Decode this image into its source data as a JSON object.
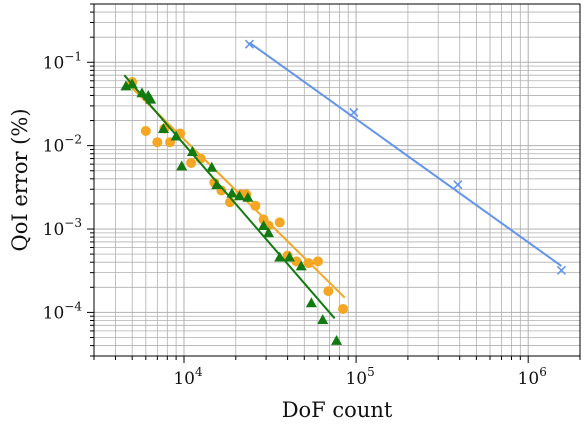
{
  "chart_data": {
    "type": "scatter",
    "xlabel": "DoF count",
    "ylabel": "QoI error (%)",
    "xscale": "log",
    "yscale": "log",
    "xlim": [
      3000,
      2000000
    ],
    "ylim": [
      3e-05,
      0.5
    ],
    "grid": true,
    "x_ticks": [
      {
        "value": 10000,
        "base": "10",
        "exp": "4"
      },
      {
        "value": 100000,
        "base": "10",
        "exp": "5"
      },
      {
        "value": 1000000,
        "base": "10",
        "exp": "6"
      }
    ],
    "y_ticks": [
      {
        "value": 0.1,
        "base": "10",
        "exp": "−1"
      },
      {
        "value": 0.01,
        "base": "10",
        "exp": "−2"
      },
      {
        "value": 0.001,
        "base": "10",
        "exp": "−3"
      },
      {
        "value": 0.0001,
        "base": "10",
        "exp": "−4"
      }
    ],
    "series": [
      {
        "marker": "x",
        "color": "#6495ED",
        "points": [
          [
            24000,
            0.165
          ],
          [
            97000,
            0.025
          ],
          [
            390000,
            0.0034
          ],
          [
            1560000,
            0.00032
          ]
        ],
        "fit": [
          [
            24000,
            0.172
          ],
          [
            1560000,
            0.00036
          ]
        ]
      },
      {
        "marker": "circle",
        "color": "#F5A623",
        "points": [
          [
            5000,
            0.058
          ],
          [
            6000,
            0.015
          ],
          [
            7000,
            0.011
          ],
          [
            7700,
            0.016
          ],
          [
            8300,
            0.011
          ],
          [
            9500,
            0.014
          ],
          [
            11000,
            0.0062
          ],
          [
            12500,
            0.007
          ],
          [
            15000,
            0.0036
          ],
          [
            16500,
            0.0029
          ],
          [
            18500,
            0.0021
          ],
          [
            21500,
            0.0026
          ],
          [
            23000,
            0.0026
          ],
          [
            26000,
            0.0019
          ],
          [
            29000,
            0.0013
          ],
          [
            31000,
            0.0011
          ],
          [
            36000,
            0.0012
          ],
          [
            40000,
            0.00048
          ],
          [
            45000,
            0.00041
          ],
          [
            53000,
            0.00039
          ],
          [
            60000,
            0.00041
          ],
          [
            69000,
            0.00018
          ],
          [
            84000,
            0.00011
          ]
        ],
        "fit": [
          [
            4600,
            0.058
          ],
          [
            86000,
            0.00015
          ]
        ]
      },
      {
        "marker": "triangle",
        "color": "#117A11",
        "points": [
          [
            4600,
            0.052
          ],
          [
            5000,
            0.055
          ],
          [
            5700,
            0.043
          ],
          [
            6200,
            0.04
          ],
          [
            6400,
            0.036
          ],
          [
            7600,
            0.016
          ],
          [
            9000,
            0.013
          ],
          [
            9700,
            0.0057
          ],
          [
            11200,
            0.0085
          ],
          [
            14500,
            0.0055
          ],
          [
            15500,
            0.0034
          ],
          [
            19000,
            0.0027
          ],
          [
            21000,
            0.0025
          ],
          [
            23500,
            0.0024
          ],
          [
            29000,
            0.0011
          ],
          [
            31000,
            0.0009
          ],
          [
            36000,
            0.00046
          ],
          [
            41000,
            0.00046
          ],
          [
            48000,
            0.00036
          ],
          [
            55000,
            0.00013
          ],
          [
            64000,
            8.2e-05
          ],
          [
            77000,
            4.6e-05
          ]
        ],
        "fit": [
          [
            4500,
            0.07
          ],
          [
            75000,
            8.5e-05
          ]
        ]
      }
    ]
  }
}
